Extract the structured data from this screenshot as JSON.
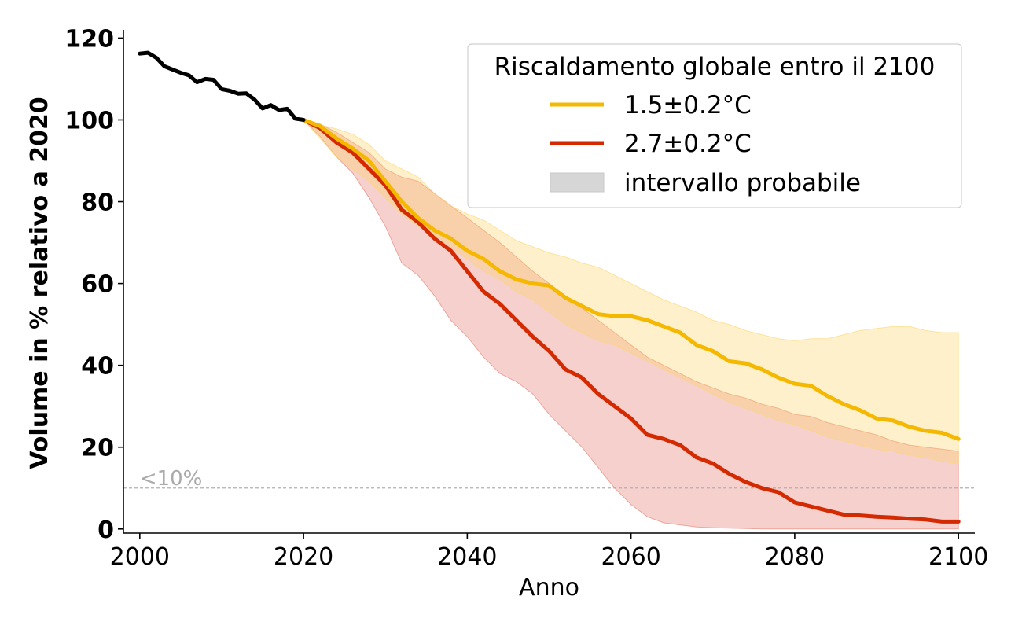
{
  "chart_data": {
    "type": "line",
    "xlabel": "Anno",
    "ylabel": "Volume in % relativo a 2020",
    "xlim": [
      1998,
      2102
    ],
    "ylim": [
      -1,
      122
    ],
    "xticks": [
      2000,
      2020,
      2040,
      2060,
      2080,
      2100
    ],
    "yticks": [
      0,
      20,
      40,
      60,
      80,
      100,
      120
    ],
    "legend": {
      "title": "Riscaldamento globale entro il 2100",
      "placement": "top-right",
      "entries": [
        "1.5±0.2°C",
        "2.7±0.2°C",
        "intervallo probabile"
      ]
    },
    "threshold": {
      "value": 10,
      "label": "<10%"
    },
    "history": {
      "color": "#000000",
      "x": [
        2000,
        2001,
        2002,
        2003,
        2004,
        2005,
        2006,
        2007,
        2008,
        2009,
        2010,
        2011,
        2012,
        2013,
        2014,
        2015,
        2016,
        2017,
        2018,
        2019,
        2020
      ],
      "y": [
        116.2,
        116.4,
        115.2,
        113.1,
        112.3,
        111.5,
        110.9,
        109.2,
        110.0,
        109.8,
        107.5,
        107.1,
        106.4,
        106.5,
        105.0,
        102.8,
        103.6,
        102.4,
        102.7,
        100.3,
        100.0
      ]
    },
    "series": [
      {
        "name": "1.5±0.2°C",
        "color": "#f5b800",
        "band_color": "#fbd56b",
        "x": [
          2020,
          2022,
          2024,
          2026,
          2028,
          2030,
          2032,
          2034,
          2036,
          2038,
          2040,
          2042,
          2044,
          2046,
          2048,
          2050,
          2052,
          2054,
          2056,
          2058,
          2060,
          2062,
          2064,
          2066,
          2068,
          2070,
          2072,
          2074,
          2076,
          2078,
          2080,
          2082,
          2084,
          2086,
          2088,
          2090,
          2092,
          2094,
          2096,
          2098,
          2100
        ],
        "y": [
          100,
          98.5,
          95.5,
          93,
          90,
          85,
          80,
          76,
          73,
          71,
          68,
          66,
          63,
          61,
          60,
          59.5,
          56.5,
          54.5,
          52.5,
          52,
          52,
          51,
          49.5,
          48,
          45,
          43.5,
          41,
          40.5,
          39,
          37,
          35.5,
          35,
          32.5,
          30.5,
          29,
          27,
          26.5,
          25,
          24,
          23.5,
          22
        ],
        "upper": [
          100,
          98.8,
          97.8,
          96.5,
          94,
          90,
          88,
          86,
          82,
          79,
          77,
          75.5,
          73,
          70.5,
          69,
          67.5,
          66.5,
          65,
          64,
          62,
          60,
          58,
          56,
          54.5,
          53,
          51,
          50,
          48.5,
          47.5,
          46.5,
          46,
          46.5,
          46.5,
          47.5,
          48.5,
          49,
          49.5,
          49.5,
          48.5,
          48,
          48
        ],
        "lower": [
          100,
          95.5,
          91,
          88,
          85,
          81,
          77,
          74,
          72,
          69,
          66,
          63,
          61,
          58,
          56,
          53,
          50,
          48,
          46,
          45,
          43,
          41,
          39,
          37,
          35,
          33,
          31,
          29.5,
          28,
          26.5,
          25.5,
          24,
          22.5,
          21.5,
          20.5,
          19.5,
          19,
          18,
          17.5,
          16.5,
          16
        ]
      },
      {
        "name": "2.7±0.2°C",
        "color": "#d42a02",
        "band_color": "#e4796c",
        "x": [
          2020,
          2022,
          2024,
          2026,
          2028,
          2030,
          2032,
          2034,
          2036,
          2038,
          2040,
          2042,
          2044,
          2046,
          2048,
          2050,
          2052,
          2054,
          2056,
          2058,
          2060,
          2062,
          2064,
          2066,
          2068,
          2070,
          2072,
          2074,
          2076,
          2078,
          2080,
          2082,
          2084,
          2086,
          2088,
          2090,
          2092,
          2094,
          2096,
          2098,
          2100
        ],
        "y": [
          100,
          98,
          94.5,
          92,
          88,
          84,
          78,
          75,
          71,
          68,
          63,
          58,
          55,
          51,
          47,
          43.5,
          39,
          37,
          33,
          30,
          27,
          23,
          22,
          20.5,
          17.5,
          16,
          13.5,
          11.5,
          10,
          9,
          6.5,
          5.5,
          4.5,
          3.5,
          3.3,
          3,
          2.8,
          2.5,
          2.3,
          1.8,
          1.8
        ],
        "upper": [
          100,
          99,
          97,
          94.5,
          92,
          88,
          86,
          85,
          82,
          79,
          76,
          73,
          70,
          66.5,
          63,
          60,
          57,
          54,
          51,
          48,
          45,
          42,
          40,
          38,
          36,
          34.5,
          33,
          32,
          30.5,
          29.5,
          28,
          27.5,
          26,
          25,
          24,
          23,
          21.5,
          20.5,
          20,
          19.5,
          19
        ],
        "lower": [
          100,
          96,
          91,
          87,
          81,
          74,
          65,
          62,
          57,
          51,
          47,
          42,
          38,
          36,
          33,
          28,
          24,
          20,
          15,
          10,
          6,
          3,
          1.5,
          1,
          0.5,
          0.3,
          0.2,
          0.1,
          0,
          0,
          0,
          0,
          0,
          0,
          0,
          0,
          0,
          0,
          0,
          0,
          0
        ]
      }
    ]
  }
}
